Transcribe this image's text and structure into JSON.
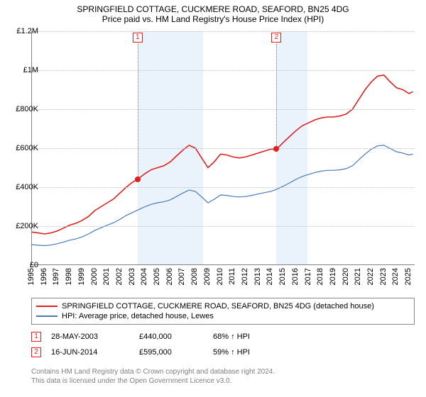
{
  "title": {
    "main": "SPRINGFIELD COTTAGE, CUCKMERE ROAD, SEAFORD, BN25 4DG",
    "sub": "Price paid vs. HM Land Registry's House Price Index (HPI)"
  },
  "chart": {
    "type": "line",
    "background_color": "#ffffff",
    "grid_color": "#c0c0c0",
    "axis_color": "#808080",
    "xlim": [
      1995,
      2025.5
    ],
    "ylim": [
      0,
      1200000
    ],
    "ytick_step": 200000,
    "yticks": [
      {
        "v": 0,
        "label": "£0"
      },
      {
        "v": 200000,
        "label": "£200K"
      },
      {
        "v": 400000,
        "label": "£400K"
      },
      {
        "v": 600000,
        "label": "£600K"
      },
      {
        "v": 800000,
        "label": "£800K"
      },
      {
        "v": 1000000,
        "label": "£1M"
      },
      {
        "v": 1200000,
        "label": "£1.2M"
      }
    ],
    "xticks": [
      1995,
      1996,
      1997,
      1998,
      1999,
      2000,
      2001,
      2002,
      2003,
      2004,
      2005,
      2006,
      2007,
      2008,
      2009,
      2010,
      2011,
      2012,
      2013,
      2014,
      2015,
      2016,
      2017,
      2018,
      2019,
      2020,
      2021,
      2022,
      2023,
      2024,
      2025
    ],
    "shaded_bands": [
      {
        "from": 2003.4,
        "to": 2008.6,
        "color": "#eaf3fb"
      },
      {
        "from": 2014.45,
        "to": 2016.9,
        "color": "#eaf3fb"
      }
    ],
    "series": [
      {
        "name": "price_paid",
        "label": "SPRINGFIELD COTTAGE, CUCKMERE ROAD, SEAFORD, BN25 4DG (detached house)",
        "color": "#e02020",
        "line_width": 1.6,
        "data": [
          [
            1995.0,
            170000
          ],
          [
            1995.5,
            165000
          ],
          [
            1996.0,
            160000
          ],
          [
            1996.5,
            165000
          ],
          [
            1997.0,
            175000
          ],
          [
            1997.5,
            190000
          ],
          [
            1998.0,
            205000
          ],
          [
            1998.5,
            215000
          ],
          [
            1999.0,
            230000
          ],
          [
            1999.5,
            250000
          ],
          [
            2000.0,
            280000
          ],
          [
            2000.5,
            300000
          ],
          [
            2001.0,
            320000
          ],
          [
            2001.5,
            340000
          ],
          [
            2002.0,
            370000
          ],
          [
            2002.5,
            400000
          ],
          [
            2003.0,
            425000
          ],
          [
            2003.4,
            440000
          ],
          [
            2004.0,
            470000
          ],
          [
            2004.5,
            490000
          ],
          [
            2005.0,
            500000
          ],
          [
            2005.5,
            510000
          ],
          [
            2006.0,
            530000
          ],
          [
            2006.5,
            560000
          ],
          [
            2007.0,
            590000
          ],
          [
            2007.5,
            615000
          ],
          [
            2008.0,
            600000
          ],
          [
            2008.5,
            550000
          ],
          [
            2009.0,
            500000
          ],
          [
            2009.5,
            530000
          ],
          [
            2010.0,
            570000
          ],
          [
            2010.5,
            565000
          ],
          [
            2011.0,
            555000
          ],
          [
            2011.5,
            550000
          ],
          [
            2012.0,
            555000
          ],
          [
            2012.5,
            565000
          ],
          [
            2013.0,
            575000
          ],
          [
            2013.5,
            585000
          ],
          [
            2014.0,
            595000
          ],
          [
            2014.45,
            595000
          ],
          [
            2015.0,
            630000
          ],
          [
            2015.5,
            660000
          ],
          [
            2016.0,
            690000
          ],
          [
            2016.5,
            715000
          ],
          [
            2017.0,
            730000
          ],
          [
            2017.5,
            745000
          ],
          [
            2018.0,
            755000
          ],
          [
            2018.5,
            760000
          ],
          [
            2019.0,
            760000
          ],
          [
            2019.5,
            765000
          ],
          [
            2020.0,
            775000
          ],
          [
            2020.5,
            800000
          ],
          [
            2021.0,
            850000
          ],
          [
            2021.5,
            900000
          ],
          [
            2022.0,
            940000
          ],
          [
            2022.5,
            970000
          ],
          [
            2023.0,
            975000
          ],
          [
            2023.5,
            940000
          ],
          [
            2024.0,
            910000
          ],
          [
            2024.5,
            900000
          ],
          [
            2025.0,
            880000
          ],
          [
            2025.3,
            890000
          ]
        ]
      },
      {
        "name": "hpi",
        "label": "HPI: Average price, detached house, Lewes",
        "color": "#4a7ab8",
        "line_width": 1.2,
        "data": [
          [
            1995.0,
            105000
          ],
          [
            1995.5,
            102000
          ],
          [
            1996.0,
            100000
          ],
          [
            1996.5,
            103000
          ],
          [
            1997.0,
            110000
          ],
          [
            1997.5,
            118000
          ],
          [
            1998.0,
            128000
          ],
          [
            1998.5,
            135000
          ],
          [
            1999.0,
            145000
          ],
          [
            1999.5,
            160000
          ],
          [
            2000.0,
            178000
          ],
          [
            2000.5,
            192000
          ],
          [
            2001.0,
            205000
          ],
          [
            2001.5,
            218000
          ],
          [
            2002.0,
            235000
          ],
          [
            2002.5,
            255000
          ],
          [
            2003.0,
            270000
          ],
          [
            2003.5,
            285000
          ],
          [
            2004.0,
            300000
          ],
          [
            2004.5,
            312000
          ],
          [
            2005.0,
            320000
          ],
          [
            2005.5,
            325000
          ],
          [
            2006.0,
            335000
          ],
          [
            2006.5,
            352000
          ],
          [
            2007.0,
            370000
          ],
          [
            2007.5,
            385000
          ],
          [
            2008.0,
            378000
          ],
          [
            2008.5,
            350000
          ],
          [
            2009.0,
            320000
          ],
          [
            2009.5,
            338000
          ],
          [
            2010.0,
            360000
          ],
          [
            2010.5,
            358000
          ],
          [
            2011.0,
            352000
          ],
          [
            2011.5,
            350000
          ],
          [
            2012.0,
            352000
          ],
          [
            2012.5,
            358000
          ],
          [
            2013.0,
            365000
          ],
          [
            2013.5,
            372000
          ],
          [
            2014.0,
            378000
          ],
          [
            2014.5,
            390000
          ],
          [
            2015.0,
            405000
          ],
          [
            2015.5,
            422000
          ],
          [
            2016.0,
            440000
          ],
          [
            2016.5,
            455000
          ],
          [
            2017.0,
            465000
          ],
          [
            2017.5,
            475000
          ],
          [
            2018.0,
            482000
          ],
          [
            2018.5,
            486000
          ],
          [
            2019.0,
            486000
          ],
          [
            2019.5,
            489000
          ],
          [
            2020.0,
            495000
          ],
          [
            2020.5,
            510000
          ],
          [
            2021.0,
            540000
          ],
          [
            2021.5,
            570000
          ],
          [
            2022.0,
            595000
          ],
          [
            2022.5,
            612000
          ],
          [
            2023.0,
            615000
          ],
          [
            2023.5,
            598000
          ],
          [
            2024.0,
            582000
          ],
          [
            2024.5,
            575000
          ],
          [
            2025.0,
            565000
          ],
          [
            2025.3,
            570000
          ]
        ]
      }
    ],
    "markers": [
      {
        "n": "1",
        "x": 2003.4,
        "y": 440000,
        "color": "#e02020"
      },
      {
        "n": "2",
        "x": 2014.45,
        "y": 595000,
        "color": "#e02020"
      }
    ]
  },
  "transactions": [
    {
      "n": "1",
      "date": "28-MAY-2003",
      "price": "£440,000",
      "hpi": "68% ↑ HPI"
    },
    {
      "n": "2",
      "date": "16-JUN-2014",
      "price": "£595,000",
      "hpi": "59% ↑ HPI"
    }
  ],
  "footer": {
    "line1": "Contains HM Land Registry data © Crown copyright and database right 2024.",
    "line2": "This data is licensed under the Open Government Licence v3.0."
  }
}
